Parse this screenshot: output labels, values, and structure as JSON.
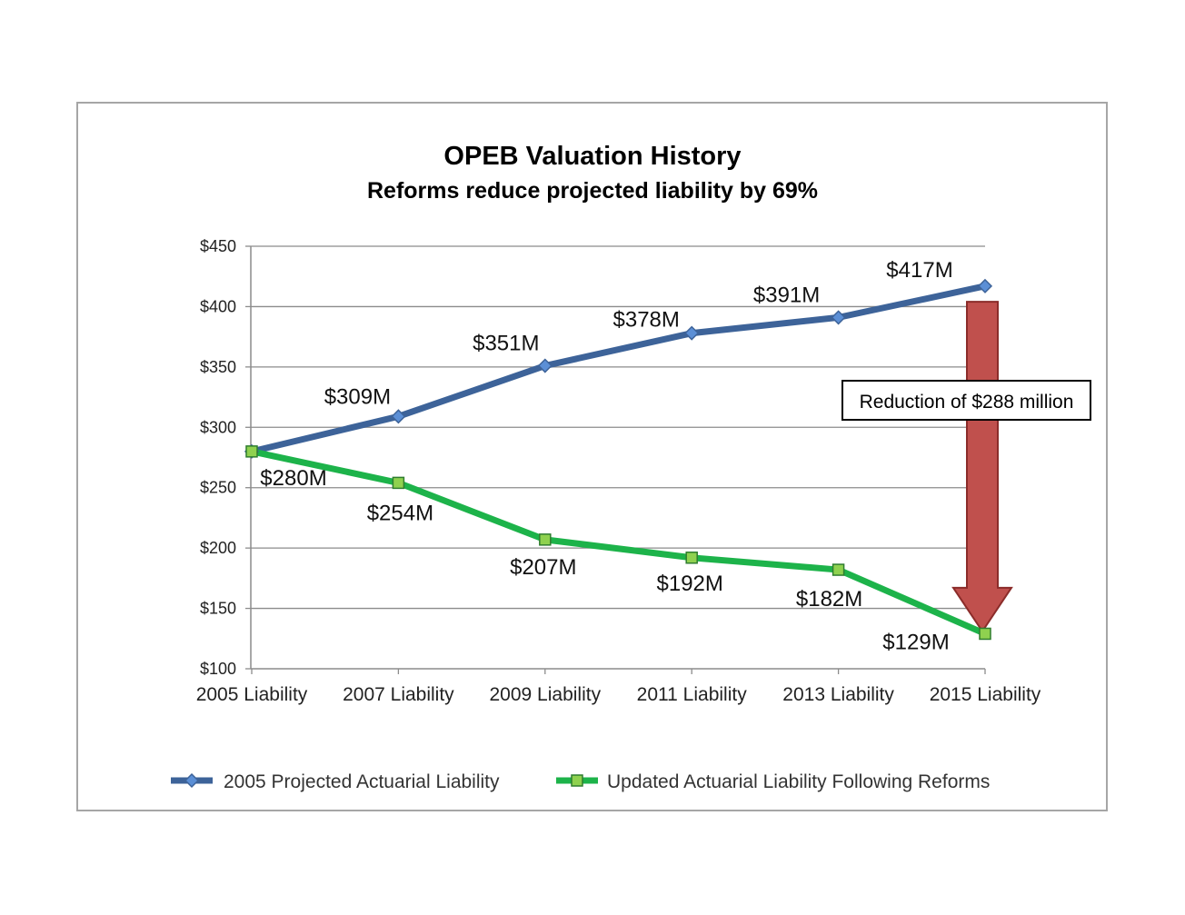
{
  "chart_data": {
    "type": "line",
    "title": "OPEB Valuation History",
    "subtitle": "Reforms reduce projected liability by 69%",
    "categories": [
      "2005 Liability",
      "2007 Liability",
      "2009 Liability",
      "2011 Liability",
      "2013 Liability",
      "2015 Liability"
    ],
    "series": [
      {
        "name": "2005 Projected Actuarial Liability",
        "values": [
          280,
          309,
          351,
          378,
          391,
          417
        ],
        "labels": [
          "",
          "$309M",
          "$351M",
          "$378M",
          "$391M",
          "$417M"
        ],
        "color": "#3d6399",
        "marker": "diamond",
        "marker_color": "#5b8fd6"
      },
      {
        "name": "Updated Actuarial Liability Following Reforms",
        "values": [
          280,
          254,
          207,
          192,
          182,
          129
        ],
        "labels": [
          "$280M",
          "$254M",
          "$207M",
          "$192M",
          "$182M",
          "$129M"
        ],
        "color": "#1db34a",
        "marker": "square",
        "marker_color": "#8fd14f"
      }
    ],
    "ylim": [
      100,
      450
    ],
    "yticks": [
      100,
      150,
      200,
      250,
      300,
      350,
      400,
      450
    ],
    "ytick_labels": [
      "$100",
      "$150",
      "$200",
      "$250",
      "$300",
      "$350",
      "$400",
      "$450"
    ],
    "xlabel": "",
    "ylabel": "",
    "grid": true,
    "legend_position": "bottom",
    "annotation": {
      "text": "Reduction of $288 million",
      "arrow_from": 404,
      "arrow_to": 131,
      "arrow_color": "#c0504d"
    }
  }
}
